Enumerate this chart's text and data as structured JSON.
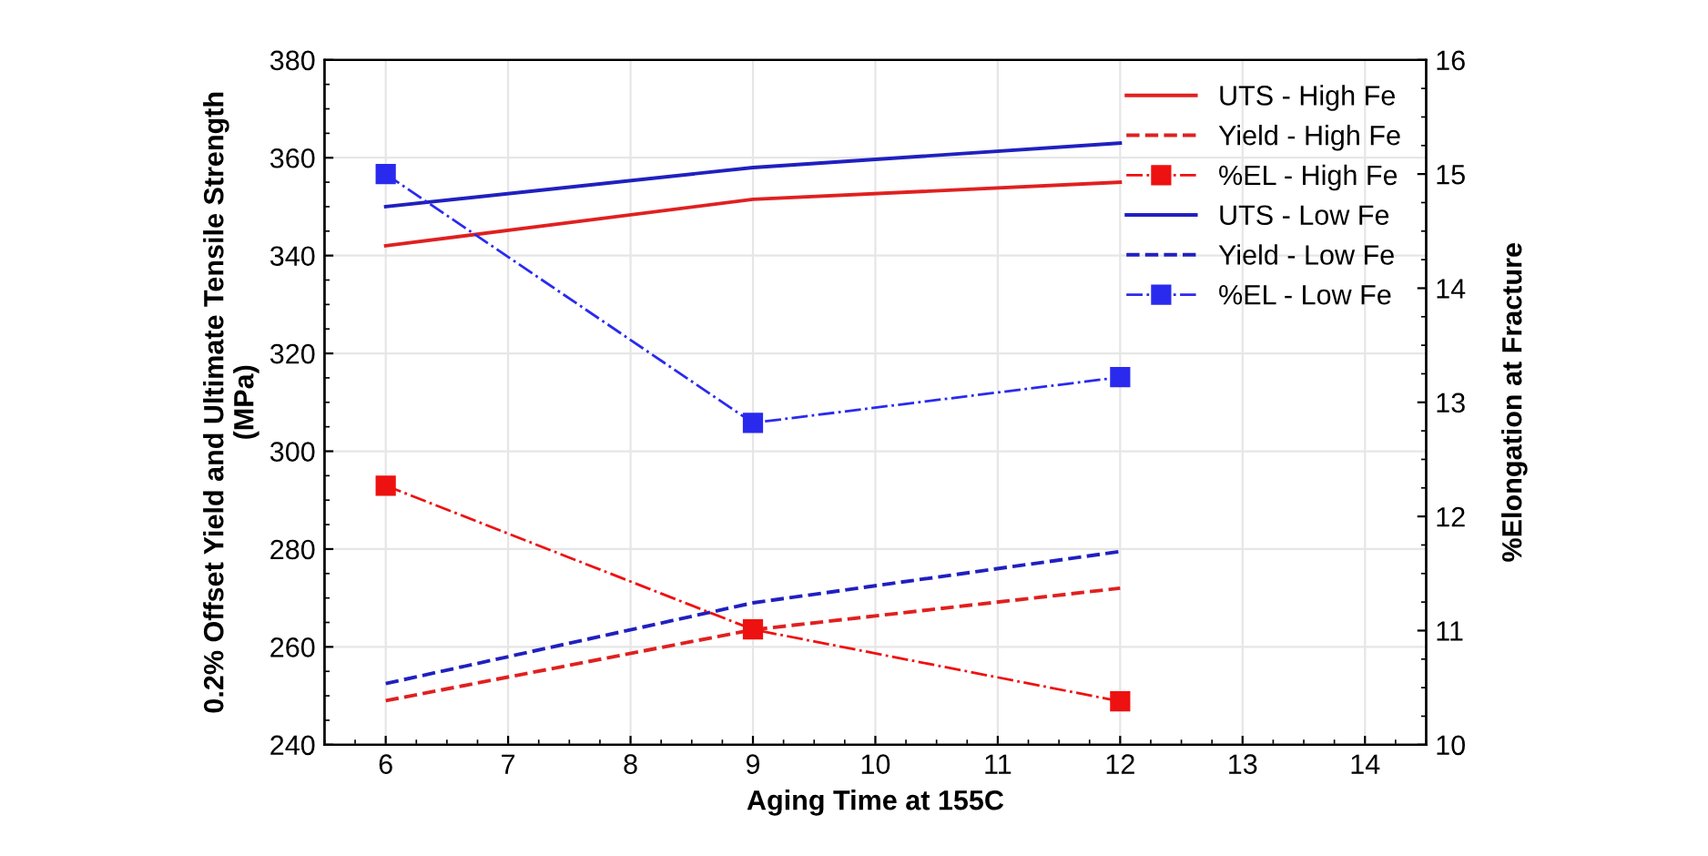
{
  "chart_data": {
    "type": "line",
    "xlabel": "Aging Time at 155C",
    "ylabel": "0.2% Offset Yield and Ultimate Tensile Strength\n(MPa)",
    "y2label": "%Elongation at Fracture",
    "x": [
      6,
      9,
      12
    ],
    "series": [
      {
        "name": "UTS - High Fe",
        "color": "#e02020",
        "values": [
          342,
          351.5,
          355
        ],
        "line_style": "solid",
        "marker": "none"
      },
      {
        "name": "Yield - High Fe",
        "color": "#e02020",
        "values": [
          249,
          263.5,
          272
        ],
        "line_style": "dashed",
        "marker": "none"
      },
      {
        "name": "%EL - High Fe",
        "color": "#ee1111",
        "values": [
          12.27,
          11.01,
          10.38
        ],
        "line_style": "dotted",
        "marker": "square",
        "axis": "y2"
      },
      {
        "name": "UTS - Low Fe",
        "color": "#2020c0",
        "values": [
          350,
          358,
          363
        ],
        "line_style": "solid",
        "marker": "none"
      },
      {
        "name": "Yield - Low Fe",
        "color": "#2020c0",
        "values": [
          252.5,
          269,
          279.5
        ],
        "line_style": "dashed",
        "marker": "none"
      },
      {
        "name": "%EL - Low Fe",
        "color": "#2a2aee",
        "values": [
          15.0,
          12.82,
          13.22
        ],
        "line_style": "dotted",
        "marker": "square",
        "axis": "y2"
      }
    ],
    "xlim": [
      5.5,
      14.5
    ],
    "xticks": [
      6,
      7,
      8,
      9,
      10,
      11,
      12,
      13,
      14
    ],
    "ylim": [
      240,
      380
    ],
    "yticks": [
      240,
      260,
      280,
      300,
      320,
      340,
      360,
      380
    ],
    "y2lim": [
      10,
      16
    ],
    "y2ticks": [
      10,
      11,
      12,
      13,
      14,
      15,
      16
    ],
    "grid": true,
    "legend": "top right"
  }
}
